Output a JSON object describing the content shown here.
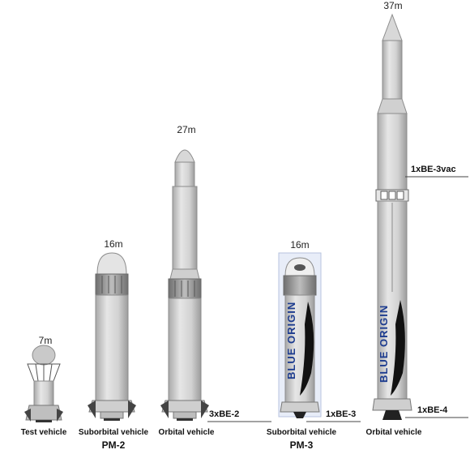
{
  "heights": {
    "test_vehicle": "7m",
    "suborbital_pm2": "16m",
    "orbital_pm2": "27m",
    "suborbital_pm3": "16m",
    "orbital_pm3": "37m"
  },
  "vehicle_labels": {
    "test_vehicle": "Test vehicle",
    "suborbital_pm2": "Suborbital vehicle",
    "orbital_pm2": "Orbital vehicle",
    "suborbital_pm3": "Suborbital vehicle",
    "orbital_pm3": "Orbital vehicle"
  },
  "groups": {
    "pm2": "PM-2",
    "pm3": "PM-3"
  },
  "engines": {
    "orbital_pm2": "3xBE-2",
    "suborbital_pm3": "1xBE-3",
    "orbital_pm3_upper": "1xBE-3vac",
    "orbital_pm3_lower": "1xBE-4"
  },
  "branding": {
    "logo_text": "BLUE ORIGIN"
  },
  "colors": {
    "rocket_body": "#d9d9d9",
    "rocket_shade": "#b8b8b8",
    "rocket_outline": "#8c8c8c",
    "engine_dark": "#3a3a3a",
    "brand_blue": "#1d3c8f",
    "panel_blue": "#dfe6f5",
    "feather_black": "#111111"
  }
}
